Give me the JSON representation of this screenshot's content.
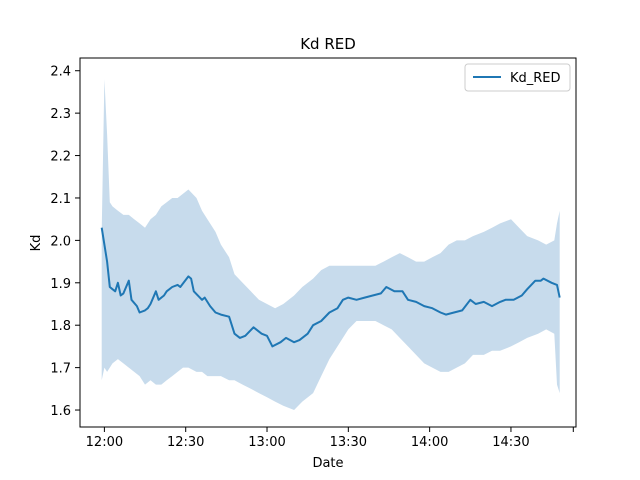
{
  "chart_data": {
    "type": "line",
    "title": "Kd RED",
    "xlabel": "Date",
    "ylabel": "Kd",
    "x_ticks": [
      "12:00",
      "12:30",
      "13:00",
      "13:30",
      "14:00",
      "14:30"
    ],
    "y_ticks": [
      "1.6",
      "1.7",
      "1.8",
      "1.9",
      "2.0",
      "2.1",
      "2.2",
      "2.3",
      "2.4"
    ],
    "xlim": [
      "11:51",
      "14:54"
    ],
    "ylim": [
      1.56,
      2.43
    ],
    "legend": {
      "position": "top-right"
    },
    "grid": false,
    "colors": {
      "line": "#1f77b4",
      "band": "#c7dbec"
    },
    "series": [
      {
        "name": "Kd_RED",
        "x": [
          "11:59",
          "12:01",
          "12:02",
          "12:03",
          "12:04",
          "12:05",
          "12:06",
          "12:07",
          "12:09",
          "12:10",
          "12:12",
          "12:13",
          "12:15",
          "12:16",
          "12:17",
          "12:19",
          "12:20",
          "12:22",
          "12:23",
          "12:25",
          "12:27",
          "12:28",
          "12:31",
          "12:32",
          "12:33",
          "12:36",
          "12:37",
          "12:39",
          "12:41",
          "12:43",
          "12:46",
          "12:48",
          "12:50",
          "12:52",
          "12:55",
          "12:58",
          "13:00",
          "13:02",
          "13:05",
          "13:07",
          "13:10",
          "13:12",
          "13:15",
          "13:17",
          "13:20",
          "13:23",
          "13:26",
          "13:28",
          "13:30",
          "13:33",
          "13:36",
          "13:39",
          "13:42",
          "13:44",
          "13:47",
          "13:50",
          "13:52",
          "13:55",
          "13:58",
          "14:01",
          "14:04",
          "14:06",
          "14:09",
          "14:12",
          "14:15",
          "14:17",
          "14:20",
          "14:23",
          "14:26",
          "14:28",
          "14:31",
          "14:34",
          "14:36",
          "14:39",
          "14:41",
          "14:42",
          "14:45",
          "14:47",
          "14:48"
        ],
        "y": [
          2.03,
          1.95,
          1.89,
          1.885,
          1.88,
          1.9,
          1.87,
          1.875,
          1.905,
          1.86,
          1.845,
          1.83,
          1.835,
          1.84,
          1.85,
          1.88,
          1.86,
          1.87,
          1.88,
          1.89,
          1.895,
          1.89,
          1.915,
          1.91,
          1.88,
          1.86,
          1.865,
          1.845,
          1.83,
          1.825,
          1.82,
          1.78,
          1.77,
          1.775,
          1.795,
          1.78,
          1.775,
          1.75,
          1.76,
          1.77,
          1.76,
          1.765,
          1.78,
          1.8,
          1.81,
          1.83,
          1.84,
          1.86,
          1.865,
          1.86,
          1.865,
          1.87,
          1.875,
          1.89,
          1.88,
          1.88,
          1.86,
          1.855,
          1.845,
          1.84,
          1.83,
          1.825,
          1.83,
          1.835,
          1.86,
          1.85,
          1.855,
          1.845,
          1.855,
          1.86,
          1.86,
          1.87,
          1.885,
          1.905,
          1.905,
          1.91,
          1.9,
          1.895,
          1.865
        ]
      }
    ],
    "band": {
      "x": [
        "11:59",
        "12:00",
        "12:01",
        "12:02",
        "12:03",
        "12:05",
        "12:07",
        "12:09",
        "12:11",
        "12:13",
        "12:15",
        "12:17",
        "12:19",
        "12:21",
        "12:23",
        "12:25",
        "12:27",
        "12:29",
        "12:31",
        "12:34",
        "12:36",
        "12:38",
        "12:41",
        "12:43",
        "12:46",
        "12:48",
        "12:51",
        "12:54",
        "12:57",
        "13:00",
        "13:03",
        "13:06",
        "13:10",
        "13:13",
        "13:17",
        "13:20",
        "13:23",
        "13:26",
        "13:30",
        "13:33",
        "13:36",
        "13:40",
        "13:43",
        "13:46",
        "13:49",
        "13:52",
        "13:55",
        "13:58",
        "14:01",
        "14:04",
        "14:07",
        "14:10",
        "14:13",
        "14:16",
        "14:20",
        "14:23",
        "14:26",
        "14:30",
        "14:33",
        "14:36",
        "14:40",
        "14:43",
        "14:46",
        "14:47",
        "14:48"
      ],
      "upper": [
        2.02,
        2.38,
        2.25,
        2.09,
        2.08,
        2.07,
        2.06,
        2.06,
        2.05,
        2.04,
        2.03,
        2.05,
        2.06,
        2.08,
        2.09,
        2.1,
        2.1,
        2.11,
        2.12,
        2.1,
        2.07,
        2.05,
        2.02,
        1.99,
        1.96,
        1.92,
        1.9,
        1.88,
        1.86,
        1.85,
        1.84,
        1.85,
        1.87,
        1.89,
        1.91,
        1.93,
        1.94,
        1.94,
        1.94,
        1.94,
        1.94,
        1.94,
        1.95,
        1.96,
        1.97,
        1.96,
        1.95,
        1.95,
        1.96,
        1.97,
        1.99,
        2.0,
        2.0,
        2.01,
        2.02,
        2.03,
        2.04,
        2.05,
        2.03,
        2.01,
        2.0,
        1.99,
        2.0,
        2.04,
        2.07
      ],
      "lower": [
        1.67,
        1.7,
        1.69,
        1.7,
        1.71,
        1.72,
        1.71,
        1.7,
        1.69,
        1.68,
        1.66,
        1.67,
        1.66,
        1.66,
        1.67,
        1.68,
        1.69,
        1.7,
        1.7,
        1.69,
        1.69,
        1.68,
        1.68,
        1.68,
        1.67,
        1.67,
        1.66,
        1.65,
        1.64,
        1.63,
        1.62,
        1.61,
        1.6,
        1.62,
        1.64,
        1.68,
        1.72,
        1.75,
        1.79,
        1.81,
        1.81,
        1.81,
        1.8,
        1.79,
        1.77,
        1.75,
        1.73,
        1.71,
        1.7,
        1.69,
        1.69,
        1.7,
        1.71,
        1.73,
        1.73,
        1.74,
        1.74,
        1.75,
        1.76,
        1.77,
        1.78,
        1.79,
        1.78,
        1.66,
        1.64
      ]
    }
  }
}
